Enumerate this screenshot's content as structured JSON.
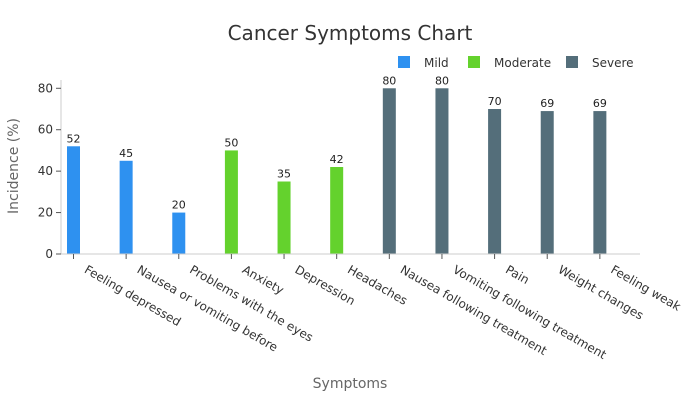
{
  "chart_data": {
    "type": "bar",
    "title": "Cancer Symptoms Chart",
    "xlabel": "Symptoms",
    "ylabel": "Incidence (%)",
    "ylim": [
      0,
      84
    ],
    "yticks": [
      0,
      20,
      40,
      60,
      80
    ],
    "grid": false,
    "legend_position": "top-right",
    "categories": [
      "Feeling depressed",
      "Nausea or vomiting before",
      "Problems with the eyes",
      "Anxiety",
      "Depression",
      "Headaches",
      "Nausea following treatment",
      "Vomiting following treatment",
      "Pain",
      "Weight changes",
      "Feeling weak"
    ],
    "series": [
      {
        "name": "Mild",
        "color": "#2e91f0",
        "values": [
          52,
          45,
          20,
          null,
          null,
          null,
          null,
          null,
          null,
          null,
          null
        ]
      },
      {
        "name": "Moderate",
        "color": "#64d22d",
        "values": [
          null,
          null,
          null,
          50,
          35,
          42,
          null,
          null,
          null,
          null,
          null
        ]
      },
      {
        "name": "Severe",
        "color": "#546e7a",
        "values": [
          null,
          null,
          null,
          null,
          null,
          null,
          80,
          80,
          70,
          69,
          69
        ]
      }
    ]
  }
}
